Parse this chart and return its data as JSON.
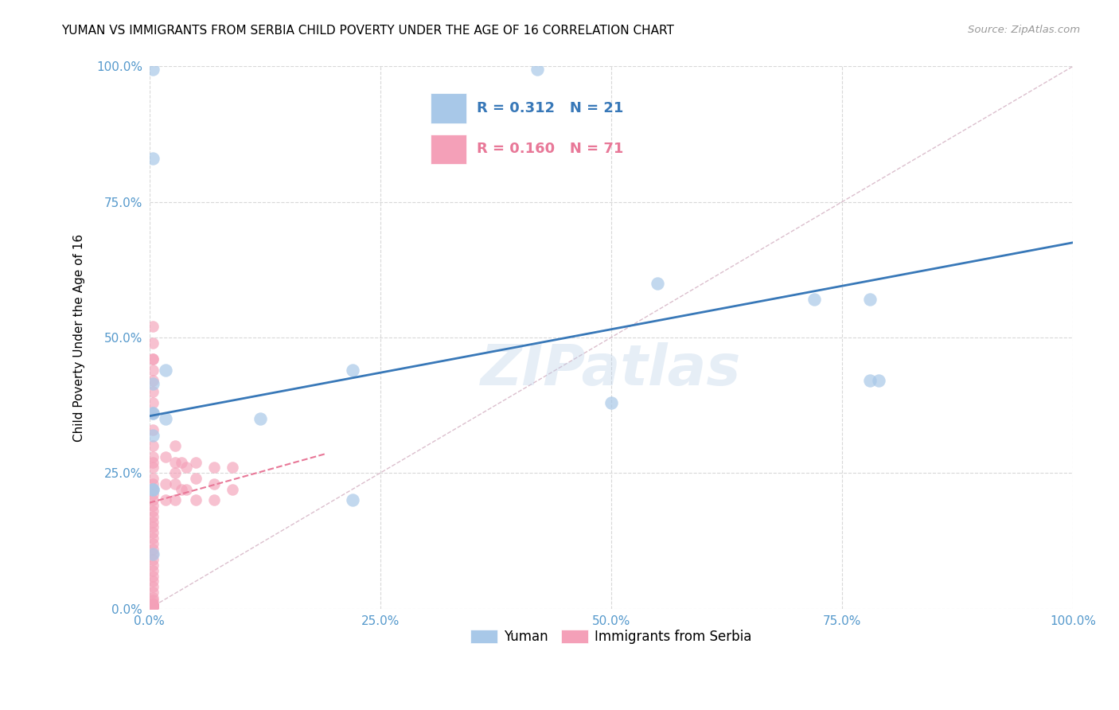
{
  "title": "YUMAN VS IMMIGRANTS FROM SERBIA CHILD POVERTY UNDER THE AGE OF 16 CORRELATION CHART",
  "source": "Source: ZipAtlas.com",
  "ylabel": "Child Poverty Under the Age of 16",
  "xlim": [
    0,
    1.0
  ],
  "ylim": [
    0,
    1.0
  ],
  "xticks": [
    0.0,
    0.25,
    0.5,
    0.75,
    1.0
  ],
  "yticks": [
    0.0,
    0.25,
    0.5,
    0.75,
    1.0
  ],
  "xticklabels": [
    "0.0%",
    "25.0%",
    "50.0%",
    "75.0%",
    "100.0%"
  ],
  "yticklabels": [
    "0.0%",
    "25.0%",
    "50.0%",
    "75.0%",
    "100.0%"
  ],
  "watermark": "ZIPatlas",
  "blue_color": "#a8c8e8",
  "pink_color": "#f4a0b8",
  "blue_line_color": "#3878b8",
  "pink_line_color": "#e87898",
  "blue_R": 0.312,
  "blue_N": 21,
  "pink_R": 0.16,
  "pink_N": 71,
  "blue_scatter_x": [
    0.004,
    0.004,
    0.004,
    0.004,
    0.004,
    0.004,
    0.004,
    0.004,
    0.004,
    0.018,
    0.018,
    0.12,
    0.22,
    0.22,
    0.42,
    0.5,
    0.55,
    0.72,
    0.78,
    0.78,
    0.79
  ],
  "blue_scatter_y": [
    0.995,
    0.83,
    0.415,
    0.36,
    0.36,
    0.32,
    0.22,
    0.22,
    0.1,
    0.44,
    0.35,
    0.35,
    0.44,
    0.2,
    0.995,
    0.38,
    0.6,
    0.57,
    0.57,
    0.42,
    0.42
  ],
  "pink_scatter_x": [
    0.004,
    0.004,
    0.004,
    0.004,
    0.004,
    0.004,
    0.004,
    0.004,
    0.004,
    0.004,
    0.004,
    0.004,
    0.004,
    0.004,
    0.004,
    0.004,
    0.004,
    0.004,
    0.004,
    0.004,
    0.004,
    0.004,
    0.004,
    0.004,
    0.004,
    0.004,
    0.004,
    0.004,
    0.004,
    0.004,
    0.004,
    0.004,
    0.004,
    0.004,
    0.004,
    0.004,
    0.004,
    0.004,
    0.004,
    0.004,
    0.004,
    0.004,
    0.004,
    0.004,
    0.004,
    0.004,
    0.004,
    0.004,
    0.004,
    0.004,
    0.004,
    0.018,
    0.018,
    0.018,
    0.028,
    0.028,
    0.028,
    0.028,
    0.028,
    0.035,
    0.035,
    0.04,
    0.04,
    0.05,
    0.05,
    0.05,
    0.07,
    0.07,
    0.07,
    0.09,
    0.09
  ],
  "pink_scatter_y": [
    0.52,
    0.49,
    0.46,
    0.46,
    0.44,
    0.42,
    0.4,
    0.38,
    0.36,
    0.33,
    0.3,
    0.28,
    0.27,
    0.26,
    0.24,
    0.23,
    0.22,
    0.21,
    0.2,
    0.19,
    0.18,
    0.17,
    0.16,
    0.15,
    0.14,
    0.13,
    0.12,
    0.11,
    0.1,
    0.09,
    0.08,
    0.07,
    0.06,
    0.05,
    0.04,
    0.03,
    0.02,
    0.015,
    0.01,
    0.008,
    0.006,
    0.004,
    0.004,
    0.004,
    0.004,
    0.004,
    0.004,
    0.004,
    0.004,
    0.004,
    0.004,
    0.28,
    0.23,
    0.2,
    0.3,
    0.27,
    0.25,
    0.23,
    0.2,
    0.27,
    0.22,
    0.26,
    0.22,
    0.27,
    0.24,
    0.2,
    0.26,
    0.23,
    0.2,
    0.26,
    0.22
  ],
  "blue_line_x": [
    0.0,
    1.0
  ],
  "blue_line_y": [
    0.355,
    0.675
  ],
  "pink_line_x": [
    0.0,
    0.19
  ],
  "pink_line_y": [
    0.195,
    0.285
  ],
  "diag_line_color": "#d8b8c8",
  "grid_color": "#d8d8d8",
  "tick_color": "#5599cc"
}
